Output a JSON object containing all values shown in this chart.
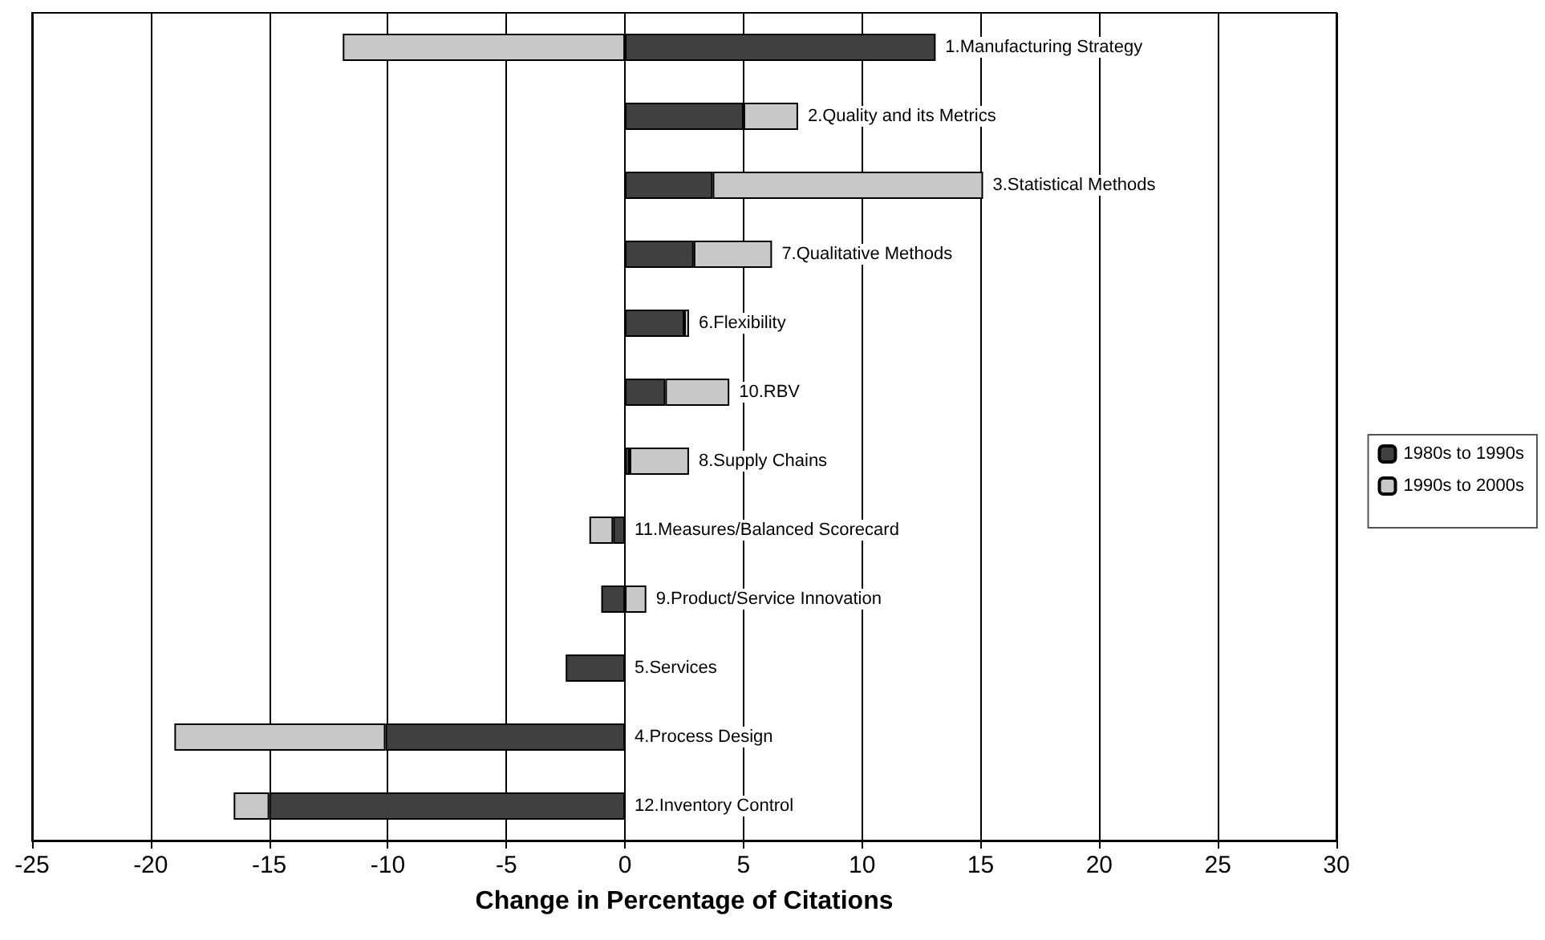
{
  "chart_data": {
    "type": "bar",
    "orientation": "horizontal",
    "stacked": true,
    "xlabel": "Change in Percentage of Citations",
    "categories": [
      "1.Manufacturing Strategy",
      "2.Quality and its Metrics",
      "3.Statistical Methods",
      "7.Qualitative Methods",
      "6.Flexibility",
      "10.RBV",
      "8.Supply Chains",
      "11.Measures/Balanced Scorecard",
      "9.Product/Service Innovation",
      "5.Services",
      "4.Process Design",
      "12.Inventory Control"
    ],
    "series": [
      {
        "name": "1980s to 1990s",
        "color": "#404040",
        "values": [
          13.1,
          5.0,
          3.7,
          2.9,
          2.5,
          1.7,
          0.2,
          -0.5,
          -1.0,
          -2.5,
          -10.1,
          -15.0
        ]
      },
      {
        "name": "1990s to 2000s",
        "color": "#c8c8c8",
        "values": [
          -11.9,
          2.3,
          11.4,
          3.3,
          0.2,
          2.7,
          2.5,
          -1.0,
          0.9,
          null,
          -8.9,
          -1.5
        ]
      }
    ],
    "xlim": [
      -25,
      30
    ],
    "xticks": [
      -25,
      -20,
      -15,
      -10,
      -5,
      0,
      5,
      10,
      15,
      20,
      25,
      30
    ],
    "grid": "x",
    "legend": "right"
  }
}
